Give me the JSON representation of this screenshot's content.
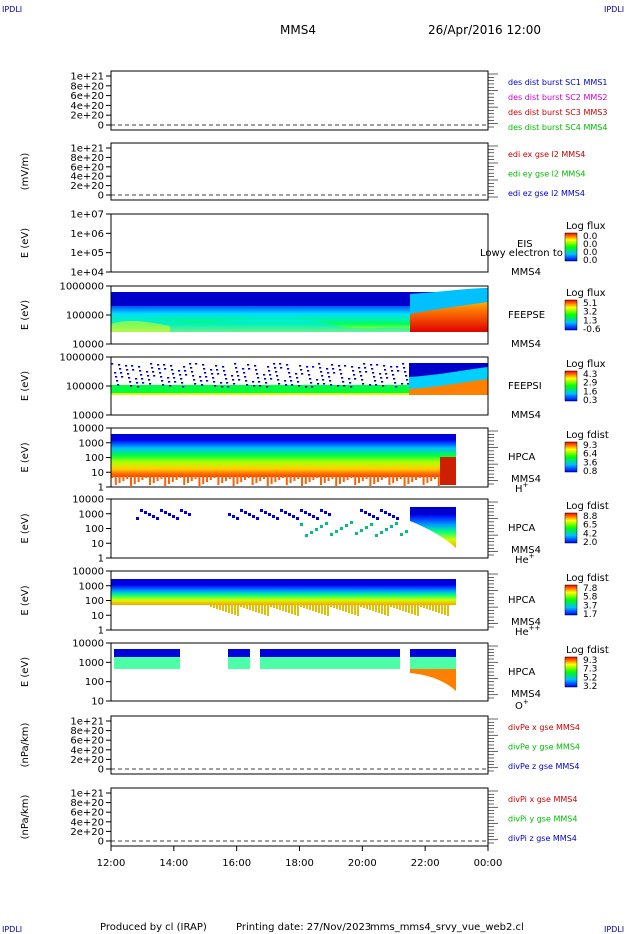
{
  "corner_marks": {
    "tl": "IPDLI",
    "tr": "IPDLI",
    "bl": "IPDLI",
    "br": "IPDLI"
  },
  "header": {
    "spacecraft": "MMS4",
    "datetime": "26/Apr/2016 12:00"
  },
  "footer": {
    "produced_by": "Produced by cl (IRAP)",
    "printing_date": "Printing date: 27/Nov/2023",
    "script": "mms_mms4_srvy_vue_web2.cl"
  },
  "colors": {
    "blue": "#0000cc",
    "magenta": "#cc00cc",
    "red": "#cc0000",
    "green": "#00bb00",
    "dashed": "#000000"
  },
  "chart_data": {
    "type": "heatmap",
    "x_time_labels": [
      "12:00",
      "14:00",
      "16:00",
      "18:00",
      "20:00",
      "22:00",
      "00:00"
    ],
    "x_range_hours": [
      12,
      24
    ],
    "panels": [
      {
        "id": "des-dist",
        "ylabel": "",
        "yticks": [
          "1e+21",
          "8e+20",
          "6e+20",
          "4e+20",
          "2e+20",
          "0"
        ],
        "legend": [
          {
            "text": "des dist burst SC1 MMS1",
            "color": "blue"
          },
          {
            "text": "des dist burst SC2 MMS2",
            "color": "magenta"
          },
          {
            "text": "des dist burst SC3 MMS3",
            "color": "red"
          },
          {
            "text": "des dist burst SC4 MMS4",
            "color": "green"
          }
        ]
      },
      {
        "id": "edi-e",
        "ylabel": "(mV/m)",
        "yticks": [
          "1e+21",
          "8e+20",
          "6e+20",
          "4e+20",
          "2e+20",
          "0"
        ],
        "legend": [
          {
            "text": "edi ex gse l2 MMS4",
            "color": "red"
          },
          {
            "text": "edi ey gse l2 MMS4",
            "color": "green"
          },
          {
            "text": "edi ez gse l2 MMS4",
            "color": "blue"
          }
        ]
      },
      {
        "id": "eis",
        "ylabel": "E (eV)",
        "yticks": [
          "1e+07",
          "1e+06",
          "1e+05",
          "1e+04"
        ],
        "instrument": "EIS",
        "overlay": "Lowy electron to",
        "sc": "MMS4",
        "cbar_title": "Log flux",
        "cbar_ticks": [
          "0.0",
          "0.0",
          "0.0",
          "0.0"
        ]
      },
      {
        "id": "feepse",
        "ylabel": "E (eV)",
        "yticks": [
          "1000000",
          "100000",
          "10000"
        ],
        "instrument": "FEEPSE",
        "sc": "MMS4",
        "cbar_title": "Log flux",
        "cbar_ticks": [
          "5.1",
          "3.2",
          "1.3",
          "-0.6"
        ]
      },
      {
        "id": "feepsi",
        "ylabel": "E (eV)",
        "yticks": [
          "1000000",
          "100000",
          "10000"
        ],
        "instrument": "FEEPSI",
        "sc": "MMS4",
        "cbar_title": "Log flux",
        "cbar_ticks": [
          "4.3",
          "2.9",
          "1.6",
          "0.3"
        ]
      },
      {
        "id": "hpca-h",
        "ylabel": "E (eV)",
        "yticks": [
          "10000",
          "1000",
          "100",
          "10",
          "1"
        ],
        "instrument": "HPCA",
        "sc": "MMS4",
        "species": "H",
        "charge": "+",
        "cbar_title": "Log fdist",
        "cbar_ticks": [
          "9.3",
          "6.4",
          "3.6",
          "0.8"
        ]
      },
      {
        "id": "hpca-he",
        "ylabel": "E (eV)",
        "yticks": [
          "10000",
          "1000",
          "100",
          "10",
          "1"
        ],
        "instrument": "HPCA",
        "sc": "MMS4",
        "species": "He",
        "charge": "+",
        "cbar_title": "Log fdist",
        "cbar_ticks": [
          "8.8",
          "6.5",
          "4.2",
          "2.0"
        ]
      },
      {
        "id": "hpca-hepp",
        "ylabel": "E (eV)",
        "yticks": [
          "10000",
          "1000",
          "100",
          "10",
          "1"
        ],
        "instrument": "HPCA",
        "sc": "MMS4",
        "species": "He",
        "charge": "++",
        "cbar_title": "Log fdist",
        "cbar_ticks": [
          "7.8",
          "5.8",
          "3.7",
          "1.7"
        ]
      },
      {
        "id": "hpca-o",
        "ylabel": "E (eV)",
        "yticks": [
          "10000",
          "1000",
          "100",
          "10"
        ],
        "instrument": "HPCA",
        "sc": "MMS4",
        "species": "O",
        "charge": "+",
        "cbar_title": "Log fdist",
        "cbar_ticks": [
          "9.3",
          "7.3",
          "5.2",
          "3.2"
        ]
      },
      {
        "id": "divpe",
        "ylabel": "(nPa/km)",
        "yticks": [
          "1e+21",
          "8e+20",
          "6e+20",
          "4e+20",
          "2e+20",
          "0"
        ],
        "legend": [
          {
            "text": "divPe x gse MMS4",
            "color": "red"
          },
          {
            "text": "divPe y gse MMS4",
            "color": "green"
          },
          {
            "text": "divPe z gse MMS4",
            "color": "blue"
          }
        ]
      },
      {
        "id": "divpi",
        "ylabel": "(nPa/km)",
        "yticks": [
          "1e+21",
          "8e+20",
          "6e+20",
          "4e+20",
          "2e+20",
          "0"
        ],
        "legend": [
          {
            "text": "divPi x gse MMS4",
            "color": "red"
          },
          {
            "text": "divPi y gse MMS4",
            "color": "green"
          },
          {
            "text": "divPi z gse MMS4",
            "color": "blue"
          }
        ]
      }
    ]
  }
}
